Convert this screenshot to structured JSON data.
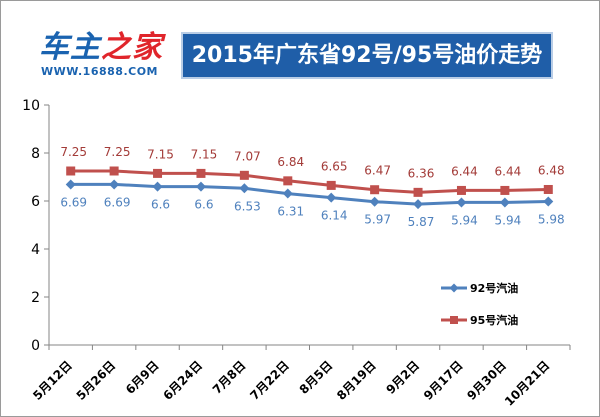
{
  "header": {
    "logo_text_blue": "车主",
    "logo_text_red": "之家",
    "logo_url": "WWW.16888.COM",
    "title": "2015年广东省92号/95号油价走势"
  },
  "colors": {
    "title_bg": "#1f5ea8",
    "series_92": "#4f81bd",
    "series_95": "#c0504d",
    "label_95": "#a33b38",
    "axis": "#868686",
    "logo_blue": "#1a63b0",
    "logo_red": "#e0252b"
  },
  "chart_data": {
    "type": "line",
    "categories": [
      "5月12日",
      "5月26日",
      "6月9日",
      "6月24日",
      "7月8日",
      "7月22日",
      "8月5日",
      "8月19日",
      "9月2日",
      "9月17日",
      "9月30日",
      "10月21日"
    ],
    "ylim": [
      0,
      10
    ],
    "yticks": [
      "0",
      "2",
      "4",
      "6",
      "8",
      "10"
    ],
    "grid": false,
    "legend_position": "right",
    "series": [
      {
        "name": "92号汽油",
        "marker": "diamond",
        "values": [
          6.69,
          6.69,
          6.6,
          6.6,
          6.53,
          6.31,
          6.14,
          5.97,
          5.87,
          5.94,
          5.94,
          5.98
        ],
        "labels": [
          "6.69",
          "6.69",
          "6.6",
          "6.6",
          "6.53",
          "6.31",
          "6.14",
          "5.97",
          "5.87",
          "5.94",
          "5.94",
          "5.98"
        ]
      },
      {
        "name": "95号汽油",
        "marker": "square",
        "values": [
          7.25,
          7.25,
          7.15,
          7.15,
          7.07,
          6.84,
          6.65,
          6.47,
          6.36,
          6.44,
          6.44,
          6.48
        ],
        "labels": [
          "7.25",
          "7.25",
          "7.15",
          "7.15",
          "7.07",
          "6.84",
          "6.65",
          "6.47",
          "6.36",
          "6.44",
          "6.44",
          "6.48"
        ]
      }
    ]
  }
}
